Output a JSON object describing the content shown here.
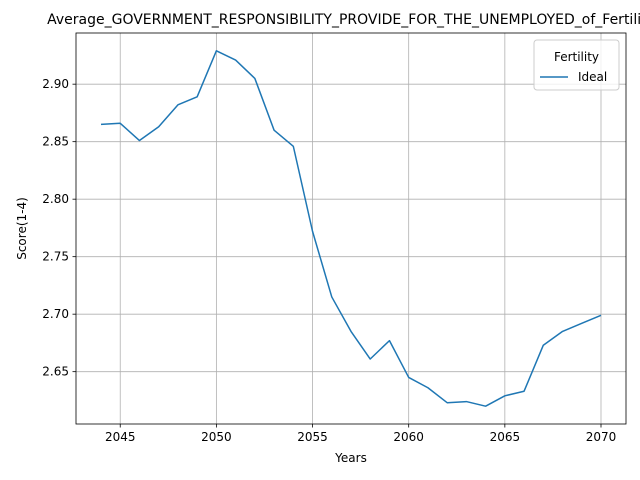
{
  "chart_data": {
    "type": "line",
    "title": "Average_GOVERNMENT_RESPONSIBILITY_PROVIDE_FOR_THE_UNEMPLOYED_of_Fertility",
    "xlabel": "Years",
    "ylabel": "Score(1-4)",
    "xlim": [
      2042.7,
      2071.3
    ],
    "ylim": [
      2.6045,
      2.9445
    ],
    "x_ticks": [
      2045,
      2050,
      2055,
      2060,
      2065,
      2070
    ],
    "y_ticks": [
      2.65,
      2.7,
      2.75,
      2.8,
      2.85,
      2.9
    ],
    "grid": true,
    "legend": {
      "title": "Fertility",
      "placement": "top-right"
    },
    "series": [
      {
        "name": "Ideal",
        "color": "#1f77b4",
        "x": [
          2044,
          2045,
          2046,
          2047,
          2048,
          2049,
          2050,
          2051,
          2052,
          2053,
          2054,
          2055,
          2056,
          2057,
          2058,
          2059,
          2060,
          2061,
          2062,
          2063,
          2064,
          2065,
          2066,
          2067,
          2068,
          2069,
          2070
        ],
        "y": [
          2.865,
          2.866,
          2.851,
          2.863,
          2.882,
          2.889,
          2.929,
          2.921,
          2.905,
          2.86,
          2.846,
          2.772,
          2.715,
          2.685,
          2.661,
          2.677,
          2.645,
          2.636,
          2.623,
          2.624,
          2.62,
          2.629,
          2.633,
          2.673,
          2.685,
          2.692,
          2.699
        ]
      }
    ]
  }
}
